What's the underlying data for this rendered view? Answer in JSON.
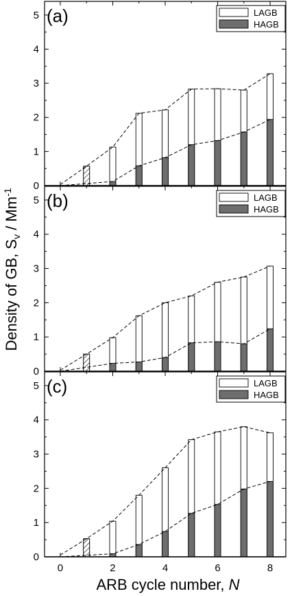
{
  "chart_data": {
    "type": "bar",
    "xlabel": "ARB cycle number, ",
    "xlabel_italic": "N",
    "ylabel": "Density of GB, S",
    "ylabel_sub": "v",
    "ylabel_unit": " / Mm",
    "ylabel_sup": "-1",
    "xlim": [
      -0.6,
      8.6
    ],
    "ylim": [
      0,
      5.4
    ],
    "xticks": [
      "0",
      "2",
      "4",
      "6",
      "8"
    ],
    "yticks": [
      "0",
      "1",
      "2",
      "3",
      "4",
      "5"
    ],
    "colors": {
      "lagb": "#ffffff",
      "hagb": "#6e6e6e",
      "hatched": "#000000"
    },
    "panels": [
      {
        "label": "(a)",
        "legend": [
          "LAGB",
          "HAGB"
        ],
        "x": [
          0,
          1,
          2,
          3,
          4,
          5,
          6,
          7,
          8
        ],
        "total": [
          0.03,
          0.57,
          1.13,
          2.12,
          2.22,
          2.83,
          2.84,
          2.8,
          3.28
        ],
        "hagb": [
          0.0,
          0.0,
          0.12,
          0.58,
          0.82,
          1.2,
          1.32,
          1.57,
          1.94
        ]
      },
      {
        "label": "(b)",
        "legend": [
          "LAGB",
          "HAGB"
        ],
        "x": [
          0,
          1,
          2,
          3,
          4,
          5,
          6,
          7,
          8
        ],
        "total": [
          0.03,
          0.5,
          0.98,
          1.62,
          2.0,
          2.2,
          2.6,
          2.75,
          3.07
        ],
        "hagb": [
          0.0,
          0.0,
          0.23,
          0.27,
          0.4,
          0.83,
          0.86,
          0.8,
          1.24
        ]
      },
      {
        "label": "(c)",
        "legend": [
          "LAGB",
          "HAGB"
        ],
        "x": [
          0,
          1,
          2,
          3,
          4,
          5,
          6,
          7,
          8
        ],
        "total": [
          0.05,
          0.53,
          1.04,
          1.8,
          2.6,
          3.42,
          3.65,
          3.8,
          3.62
        ],
        "hagb": [
          0.0,
          0.0,
          0.09,
          0.36,
          0.74,
          1.27,
          1.53,
          1.98,
          2.2
        ]
      }
    ]
  }
}
